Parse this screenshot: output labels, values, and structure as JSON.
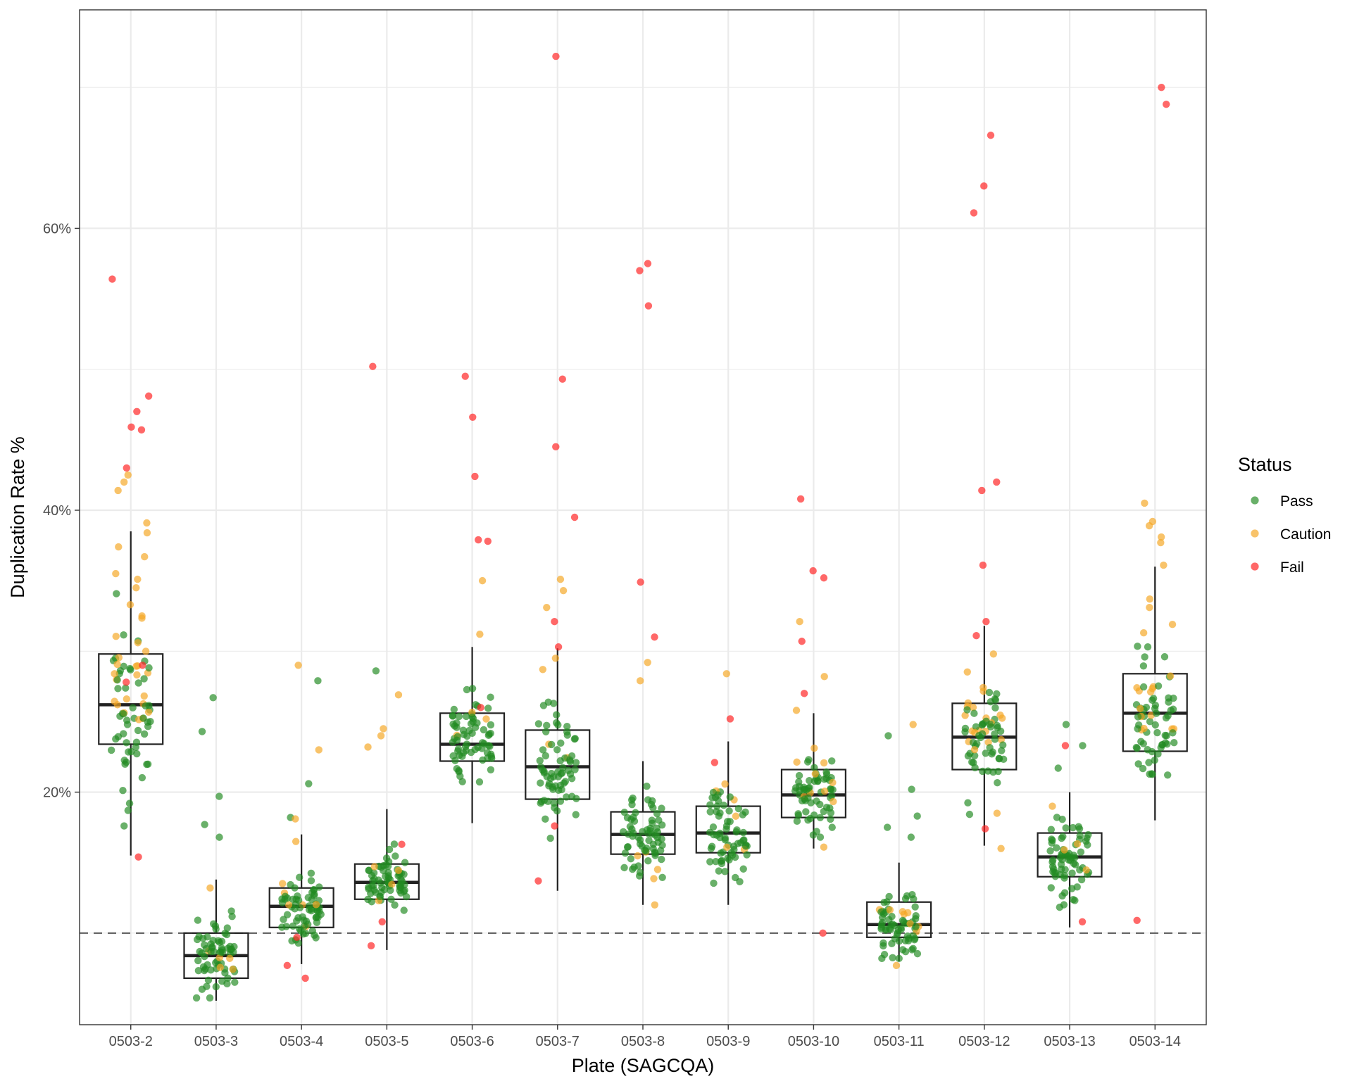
{
  "chart_data": {
    "type": "box-jitter",
    "xlabel": "Plate (SAGCQA)",
    "ylabel": "Duplication Rate %",
    "ylim": [
      0.035,
      0.755
    ],
    "y_ticks": [
      0.2,
      0.4,
      0.6
    ],
    "y_tick_labels": [
      "20%",
      "40%",
      "60%"
    ],
    "reference_line": {
      "y": 0.1,
      "style": "dashed"
    },
    "grid": true,
    "legend": {
      "title": "Status",
      "placement": "right",
      "entries": [
        {
          "name": "Pass",
          "color": "#228B22"
        },
        {
          "name": "Caution",
          "color": "#F5A623"
        },
        {
          "name": "Fail",
          "color": "#FF2020"
        }
      ]
    },
    "categories": [
      "0503-2",
      "0503-3",
      "0503-4",
      "0503-5",
      "0503-6",
      "0503-7",
      "0503-8",
      "0503-9",
      "0503-10",
      "0503-11",
      "0503-12",
      "0503-13",
      "0503-14"
    ],
    "boxes": [
      {
        "lower_whisker": 0.155,
        "q1": 0.234,
        "median": 0.262,
        "q3": 0.298,
        "upper_whisker": 0.385
      },
      {
        "lower_whisker": 0.052,
        "q1": 0.068,
        "median": 0.084,
        "q3": 0.1,
        "upper_whisker": 0.138
      },
      {
        "lower_whisker": 0.078,
        "q1": 0.104,
        "median": 0.119,
        "q3": 0.132,
        "upper_whisker": 0.17
      },
      {
        "lower_whisker": 0.088,
        "q1": 0.124,
        "median": 0.136,
        "q3": 0.149,
        "upper_whisker": 0.188
      },
      {
        "lower_whisker": 0.178,
        "q1": 0.222,
        "median": 0.234,
        "q3": 0.256,
        "upper_whisker": 0.303
      },
      {
        "lower_whisker": 0.13,
        "q1": 0.195,
        "median": 0.218,
        "q3": 0.244,
        "upper_whisker": 0.302
      },
      {
        "lower_whisker": 0.12,
        "q1": 0.156,
        "median": 0.17,
        "q3": 0.186,
        "upper_whisker": 0.222
      },
      {
        "lower_whisker": 0.12,
        "q1": 0.157,
        "median": 0.171,
        "q3": 0.19,
        "upper_whisker": 0.236
      },
      {
        "lower_whisker": 0.16,
        "q1": 0.182,
        "median": 0.198,
        "q3": 0.216,
        "upper_whisker": 0.256
      },
      {
        "lower_whisker": 0.08,
        "q1": 0.097,
        "median": 0.106,
        "q3": 0.122,
        "upper_whisker": 0.15
      },
      {
        "lower_whisker": 0.162,
        "q1": 0.216,
        "median": 0.239,
        "q3": 0.263,
        "upper_whisker": 0.318
      },
      {
        "lower_whisker": 0.104,
        "q1": 0.14,
        "median": 0.154,
        "q3": 0.171,
        "upper_whisker": 0.2
      },
      {
        "lower_whisker": 0.18,
        "q1": 0.229,
        "median": 0.256,
        "q3": 0.284,
        "upper_whisker": 0.36
      }
    ],
    "outliers_fail": [
      {
        "plate": "0503-2",
        "values": [
          0.564,
          0.481,
          0.47,
          0.459,
          0.457,
          0.43,
          0.29,
          0.278,
          0.154
        ]
      },
      {
        "plate": "0503-3",
        "values": []
      },
      {
        "plate": "0503-4",
        "values": [
          0.097,
          0.077,
          0.068
        ]
      },
      {
        "plate": "0503-5",
        "values": [
          0.502,
          0.163,
          0.108,
          0.091
        ]
      },
      {
        "plate": "0503-6",
        "values": [
          0.495,
          0.466,
          0.424,
          0.379,
          0.378,
          0.26
        ]
      },
      {
        "plate": "0503-7",
        "values": [
          0.722,
          0.493,
          0.445,
          0.395,
          0.321,
          0.303,
          0.176,
          0.137
        ]
      },
      {
        "plate": "0503-8",
        "values": [
          0.575,
          0.57,
          0.545,
          0.349,
          0.31
        ]
      },
      {
        "plate": "0503-9",
        "values": [
          0.252,
          0.221
        ]
      },
      {
        "plate": "0503-10",
        "values": [
          0.408,
          0.357,
          0.352,
          0.307,
          0.27,
          0.1
        ]
      },
      {
        "plate": "0503-11",
        "values": []
      },
      {
        "plate": "0503-12",
        "values": [
          0.666,
          0.63,
          0.611,
          0.42,
          0.414,
          0.361,
          0.321,
          0.311,
          0.174
        ]
      },
      {
        "plate": "0503-13",
        "values": [
          0.233,
          0.108
        ]
      },
      {
        "plate": "0503-14",
        "values": [
          0.7,
          0.688,
          0.109
        ]
      }
    ],
    "outliers_caution": [
      {
        "plate": "0503-2",
        "values": [
          0.425,
          0.42,
          0.414,
          0.391,
          0.384,
          0.374,
          0.367,
          0.355,
          0.351,
          0.345,
          0.333,
          0.325,
          0.306
        ]
      },
      {
        "plate": "0503-3",
        "values": [
          0.132
        ]
      },
      {
        "plate": "0503-4",
        "values": [
          0.29,
          0.23,
          0.181,
          0.165
        ]
      },
      {
        "plate": "0503-5",
        "values": [
          0.269,
          0.245,
          0.24,
          0.232
        ]
      },
      {
        "plate": "0503-6",
        "values": [
          0.35,
          0.312
        ]
      },
      {
        "plate": "0503-7",
        "values": [
          0.351,
          0.343,
          0.331,
          0.295,
          0.287
        ]
      },
      {
        "plate": "0503-8",
        "values": [
          0.292,
          0.279,
          0.12
        ]
      },
      {
        "plate": "0503-9",
        "values": [
          0.284
        ]
      },
      {
        "plate": "0503-10",
        "values": [
          0.321,
          0.282,
          0.258,
          0.161
        ]
      },
      {
        "plate": "0503-11",
        "values": [
          0.248,
          0.077
        ]
      },
      {
        "plate": "0503-12",
        "values": [
          0.298,
          0.16,
          0.185
        ]
      },
      {
        "plate": "0503-13",
        "values": [
          0.19
        ]
      },
      {
        "plate": "0503-14",
        "values": [
          0.405,
          0.392,
          0.389,
          0.381,
          0.377,
          0.361,
          0.337,
          0.331,
          0.319,
          0.313
        ]
      }
    ],
    "outliers_pass": [
      {
        "plate": "0503-2",
        "values": [
          0.192,
          0.187,
          0.176
        ]
      },
      {
        "plate": "0503-3",
        "values": [
          0.267,
          0.243,
          0.197,
          0.177,
          0.168
        ]
      },
      {
        "plate": "0503-4",
        "values": [
          0.279,
          0.206,
          0.182
        ]
      },
      {
        "plate": "0503-5",
        "values": [
          0.286
        ]
      },
      {
        "plate": "0503-6",
        "values": []
      },
      {
        "plate": "0503-7",
        "values": []
      },
      {
        "plate": "0503-8",
        "values": []
      },
      {
        "plate": "0503-9",
        "values": []
      },
      {
        "plate": "0503-10",
        "values": []
      },
      {
        "plate": "0503-11",
        "values": [
          0.24,
          0.202,
          0.183,
          0.175,
          0.168
        ]
      },
      {
        "plate": "0503-12",
        "values": []
      },
      {
        "plate": "0503-13",
        "values": [
          0.248,
          0.233,
          0.217
        ]
      },
      {
        "plate": "0503-14",
        "values": []
      }
    ]
  }
}
